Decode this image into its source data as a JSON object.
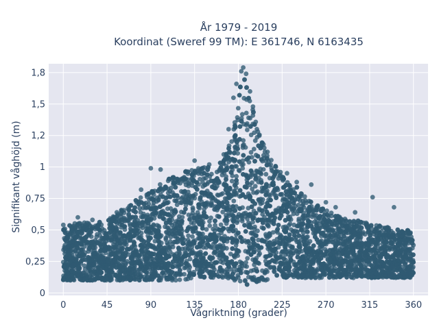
{
  "chart_data": {
    "type": "scatter",
    "title_line1": "År 1979 - 2019",
    "title_line2": "Koordinat (Sweref 99 TM): E 361746, N 6163435",
    "xlabel": "Vågriktning (grader)",
    "ylabel": "Signifikant våghöjd (m)",
    "xlim": [
      -15,
      375
    ],
    "ylim": [
      -0.02,
      1.82
    ],
    "x_ticks": [
      {
        "value": 0,
        "label": "0"
      },
      {
        "value": 45,
        "label": "45"
      },
      {
        "value": 90,
        "label": "90"
      },
      {
        "value": 135,
        "label": "135"
      },
      {
        "value": 180,
        "label": "180"
      },
      {
        "value": 225,
        "label": "225"
      },
      {
        "value": 270,
        "label": "270"
      },
      {
        "value": 315,
        "label": "315"
      },
      {
        "value": 360,
        "label": "360"
      }
    ],
    "y_ticks": [
      {
        "value": 0,
        "label": "0"
      },
      {
        "value": 0.25,
        "label": "0,25"
      },
      {
        "value": 0.5,
        "label": "0,5"
      },
      {
        "value": 0.75,
        "label": "0,75"
      },
      {
        "value": 1,
        "label": "1"
      },
      {
        "value": 1.25,
        "label": "1,2"
      },
      {
        "value": 1.5,
        "label": "1,5"
      },
      {
        "value": 1.75,
        "label": "1,8"
      }
    ],
    "grid": true,
    "colors": {
      "marker": "#2f5a72",
      "plot_background": "#e5e6f0",
      "gridline": "#ffffff",
      "text": "#2a3f5f"
    },
    "envelope": {
      "direction_deg": [
        0,
        15,
        30,
        45,
        60,
        75,
        90,
        105,
        120,
        135,
        150,
        165,
        175,
        180,
        185,
        190,
        200,
        210,
        225,
        240,
        255,
        270,
        285,
        300,
        315,
        330,
        345,
        360
      ],
      "max_height_m": [
        0.52,
        0.56,
        0.56,
        0.58,
        0.66,
        0.74,
        0.8,
        0.9,
        0.95,
        1.0,
        1.0,
        1.05,
        1.3,
        1.6,
        1.78,
        1.62,
        1.3,
        1.1,
        0.95,
        0.85,
        0.72,
        0.66,
        0.6,
        0.58,
        0.55,
        0.53,
        0.5,
        0.5
      ],
      "min_height_m": [
        0.1,
        0.1,
        0.1,
        0.1,
        0.1,
        0.1,
        0.1,
        0.1,
        0.1,
        0.12,
        0.12,
        0.12,
        0.1,
        0.08,
        0.06,
        0.06,
        0.08,
        0.1,
        0.12,
        0.12,
        0.12,
        0.12,
        0.12,
        0.12,
        0.12,
        0.12,
        0.12,
        0.12
      ]
    },
    "outliers": [
      {
        "x": 185,
        "y": 1.79
      },
      {
        "x": 183,
        "y": 1.76
      },
      {
        "x": 188,
        "y": 1.74
      },
      {
        "x": 178,
        "y": 1.66
      },
      {
        "x": 192,
        "y": 1.6
      },
      {
        "x": 175,
        "y": 1.55
      },
      {
        "x": 195,
        "y": 1.48
      },
      {
        "x": 170,
        "y": 1.3
      },
      {
        "x": 200,
        "y": 1.28
      },
      {
        "x": 165,
        "y": 1.1
      },
      {
        "x": 210,
        "y": 1.12
      },
      {
        "x": 150,
        "y": 1.02
      },
      {
        "x": 135,
        "y": 1.05
      },
      {
        "x": 100,
        "y": 0.98
      },
      {
        "x": 90,
        "y": 0.99
      },
      {
        "x": 80,
        "y": 0.82
      },
      {
        "x": 230,
        "y": 0.95
      },
      {
        "x": 240,
        "y": 0.88
      },
      {
        "x": 255,
        "y": 0.86
      },
      {
        "x": 270,
        "y": 0.72
      },
      {
        "x": 280,
        "y": 0.68
      },
      {
        "x": 300,
        "y": 0.64
      },
      {
        "x": 318,
        "y": 0.76
      },
      {
        "x": 340,
        "y": 0.68
      },
      {
        "x": 0,
        "y": 0.54
      },
      {
        "x": 15,
        "y": 0.6
      },
      {
        "x": 30,
        "y": 0.58
      },
      {
        "x": 55,
        "y": 0.64
      }
    ]
  }
}
